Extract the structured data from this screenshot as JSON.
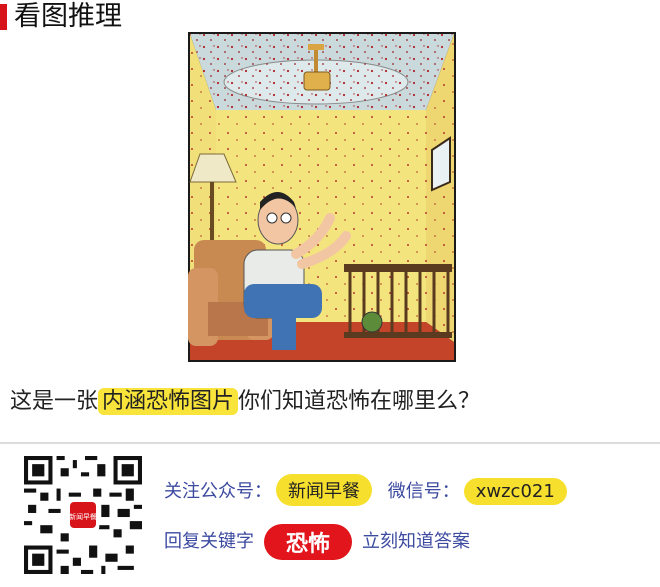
{
  "header": {
    "title": "看图推理"
  },
  "question": {
    "prefix": "这是一张",
    "highlight": "内涵恐怖图片",
    "suffix": "你们知道恐怖在哪里么？"
  },
  "footer": {
    "follow_label": "关注公众号：",
    "account_name": "新闻早餐",
    "wechat_label": "微信号：",
    "wechat_id": "xwzc021",
    "reply_prefix": "回复关键字",
    "keyword": "恐怖",
    "reply_suffix": "立刻知道答案",
    "qr_logo_text": "新闻早餐"
  },
  "colors": {
    "accent_red": "#d8141b",
    "highlight_yellow": "#f7df2e",
    "text_blue": "#3c4aa0"
  }
}
